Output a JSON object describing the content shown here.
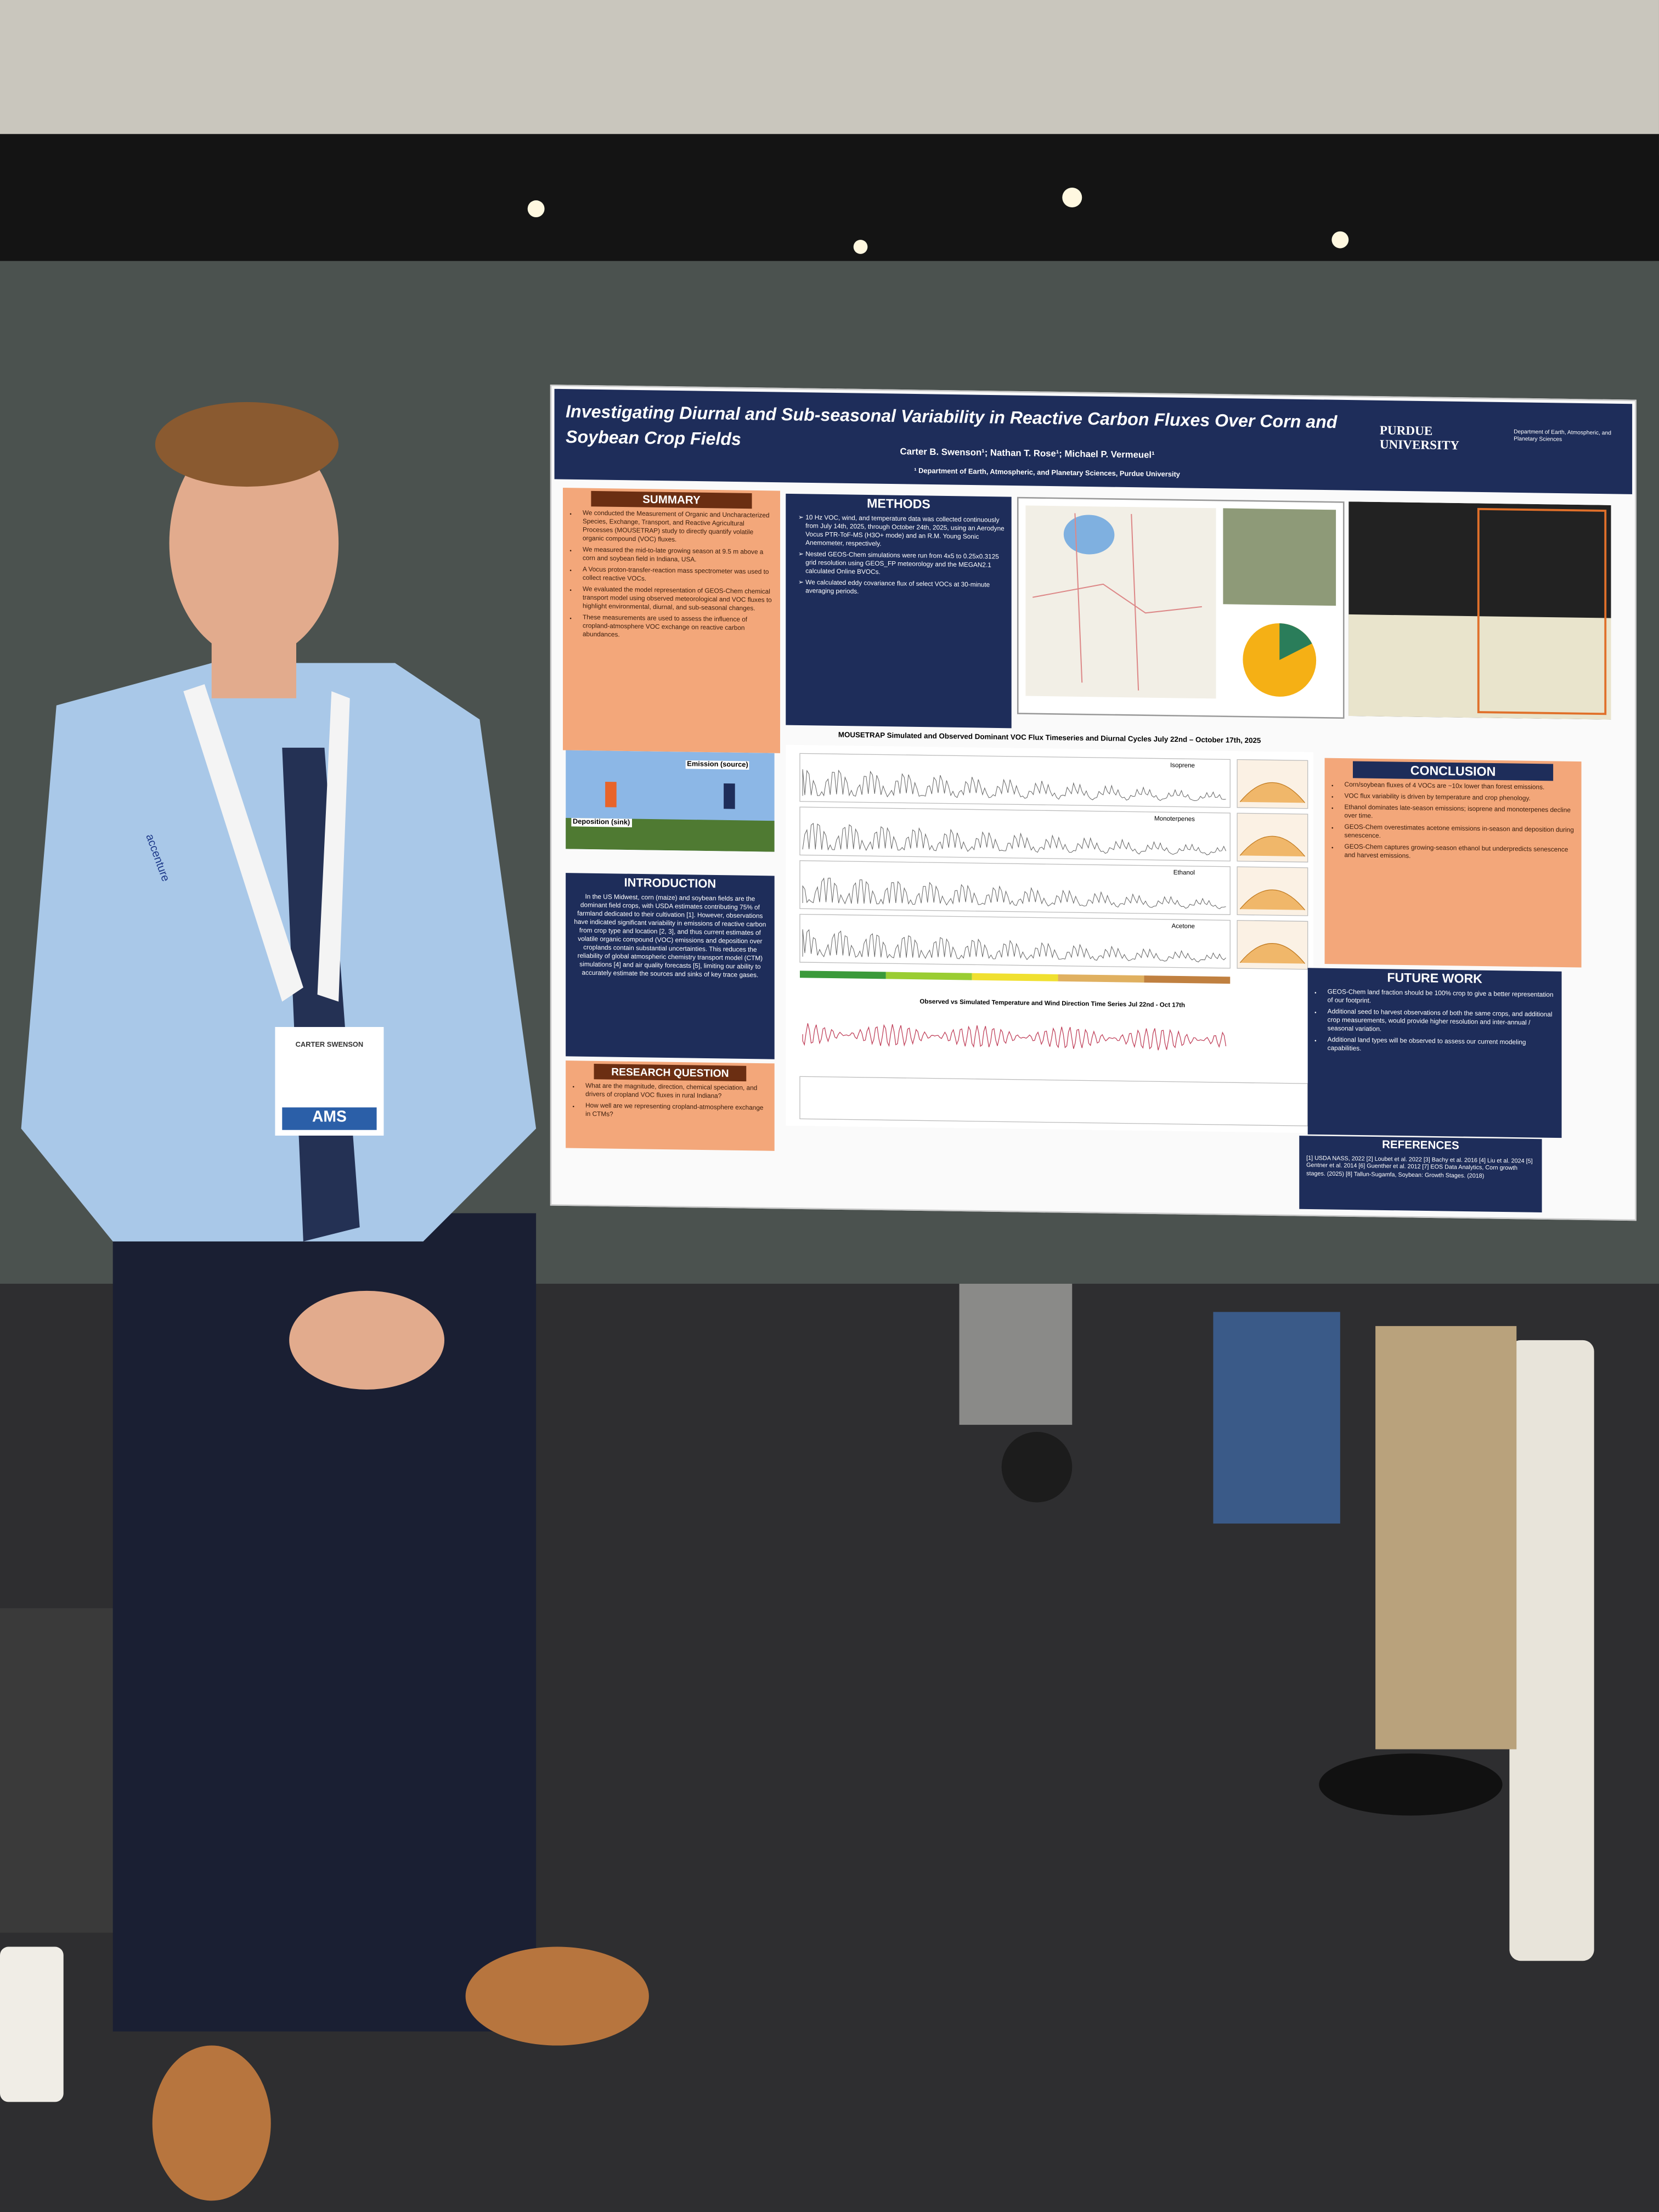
{
  "poster": {
    "title": "Investigating Diurnal and Sub-seasonal Variability in Reactive Carbon Fluxes Over Corn and Soybean Crop Fields",
    "authors": "Carter B. Swenson¹; Nathan T. Rose¹; Michael P. Vermeuel¹",
    "affiliation": "¹ Department of Earth, Atmospheric, and Planetary Sciences, Purdue University",
    "logo": "PURDUE UNIVERSITY",
    "department": "Department of Earth, Atmospheric, and Planetary Sciences",
    "summary": {
      "heading": "SUMMARY",
      "items": [
        "We conducted the Measurement of Organic and Uncharacterized Species, Exchange, Transport, and Reactive Agricultural Processes (MOUSETRAP) study to directly quantify volatile organic compound (VOC) fluxes.",
        "We measured the mid-to-late growing season at 9.5 m above a corn and soybean field in Indiana, USA.",
        "A Vocus proton-transfer-reaction mass spectrometer was used to collect reactive VOCs.",
        "We evaluated the model representation of GEOS-Chem chemical transport model using observed meteorological and VOC fluxes to highlight environmental, diurnal, and sub-seasonal changes.",
        "These measurements are used to assess the influence of cropland-atmosphere VOC exchange on reactive carbon abundances."
      ]
    },
    "methods": {
      "heading": "METHODS",
      "items": [
        "10 Hz VOC, wind, and temperature data was collected continuously from July 14th, 2025, through October 24th, 2025, using an Aerodyne Vocus PTR-ToF-MS (H3O+ mode) and an R.M. Young Sonic Anemometer, respectively.",
        "Nested GEOS-Chem simulations were run from 4x5 to 0.25x0.3125 grid resolution using GEOS_FP meteorology and the MEGAN2.1 calculated Online BVOCs.",
        "We calculated eddy covariance flux of select VOCs at 30-minute averaging periods."
      ]
    },
    "figure1": {
      "emission": "Emission (source)",
      "deposition": "Deposition (sink)"
    },
    "introduction": {
      "heading": "INTRODUCTION",
      "text": "In the US Midwest, corn (maize) and soybean fields are the dominant field crops, with USDA estimates contributing 75% of farmland dedicated to their cultivation [1]. However, observations have indicated significant variability in emissions of reactive carbon from crop type and location [2, 3], and thus current estimates of volatile organic compound (VOC) emissions and deposition over croplands contain substantial uncertainties. This reduces the reliability of global atmospheric chemistry transport model (CTM) simulations [4] and air quality forecasts [5], limiting our ability to accurately estimate the sources and sinks of key trace gases."
    },
    "research_question": {
      "heading": "RESEARCH QUESTION",
      "items": [
        "What are the magnitude, direction, chemical speciation, and drivers of cropland VOC fluxes in rural Indiana?",
        "How well are we representing cropland-atmosphere exchange in CTMs?"
      ]
    },
    "timeseries": {
      "title": "MOUSETRAP Simulated and Observed Dominant VOC Flux Timeseries and Diurnal Cycles July 22nd – October 17th, 2025",
      "panels": [
        "Isoprene",
        "Monoterpenes",
        "Ethanol",
        "Acetone"
      ],
      "subtitle": "Observed vs Simulated Temperature and Wind Direction Time Series Jul 22nd - Oct 17th"
    },
    "conclusion": {
      "heading": "CONCLUSION",
      "items": [
        "Corn/soybean fluxes of 4 VOCs are ~10x lower than forest emissions.",
        "VOC flux variability is driven by temperature and crop phenology.",
        "Ethanol dominates late-season emissions; isoprene and monoterpenes decline over time.",
        "GEOS-Chem overestimates acetone emissions in-season and deposition during senescence.",
        "GEOS-Chem captures growing-season ethanol but underpredicts senescence and harvest emissions."
      ]
    },
    "future_work": {
      "heading": "FUTURE WORK",
      "items": [
        "GEOS-Chem land fraction should be 100% crop to give a better representation of our footprint.",
        "Additional seed to harvest observations of both the same crops, and additional crop measurements, would provide higher resolution and inter-annual / seasonal variation.",
        "Additional land types will be observed to assess our current modeling capabilities."
      ]
    },
    "references": {
      "heading": "REFERENCES",
      "text": "[1] USDA NASS, 2022 [2] Loubet et al. 2022 [3] Bachy et al. 2016 [4] Liu et al. 2024 [5] Gentner et al. 2014 [6] Guenther et al. 2012 [7] EOS Data Analytics, Corn growth stages. (2025) [8] Tallun-Sugamfa, Soybean: Growth Stages. (2018)"
    }
  },
  "badge": {
    "name": "CARTER SWENSON",
    "org": "AMS"
  },
  "lanyard": "accenture"
}
